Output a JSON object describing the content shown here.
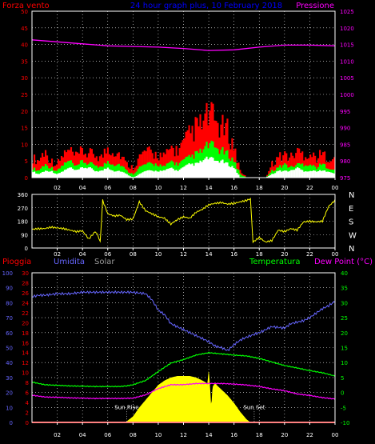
{
  "colors": {
    "wind_gust": "#ff0000",
    "wind_avg": "#00ff00",
    "wind_min": "#ffffff",
    "pressure": "#ff00ff",
    "direction": "#ffff00",
    "rain": "#ff0000",
    "humidity": "#6666ff",
    "solar": "#ffff00",
    "temperature": "#00ff00",
    "dew_point": "#ff00ff",
    "grid": "#ffffff",
    "frame": "#ffffff",
    "title": "#0000ff"
  },
  "chart_data": [
    {
      "type": "area",
      "id": "wind-pressure",
      "title": "24 hour graph plus, 10 February 2018",
      "left_label": "Forza vento",
      "right_label": "Pressione",
      "x_ticks": [
        "02",
        "04",
        "06",
        "08",
        "10",
        "12",
        "14",
        "16",
        "18",
        "20",
        "22",
        "00"
      ],
      "left_ticks": [
        "0",
        "5",
        "10",
        "15",
        "20",
        "25",
        "30",
        "35",
        "40",
        "45",
        "50"
      ],
      "right_ticks": [
        "975",
        "980",
        "985",
        "990",
        "995",
        "1000",
        "1005",
        "1010",
        "1015",
        "1020",
        "1025"
      ],
      "ylim_left": [
        0,
        50
      ],
      "ylim_right": [
        975,
        1025
      ],
      "grid": true,
      "series": [
        {
          "key": "gust",
          "color_key": "wind_gust",
          "x": [
            0,
            0.5,
            1,
            1.5,
            2,
            2.5,
            3,
            3.5,
            4,
            4.5,
            5,
            5.5,
            6,
            6.5,
            7,
            7.5,
            8,
            8.5,
            9,
            9.5,
            10,
            10.5,
            11,
            11.5,
            12,
            12.5,
            13,
            13.5,
            14,
            14.5,
            15,
            15.5,
            16,
            16.5,
            17,
            17.5,
            18,
            18.5,
            19,
            19.5,
            20,
            20.5,
            21,
            21.5,
            22,
            22.5,
            23,
            23.5,
            24
          ],
          "values": [
            6,
            5,
            8,
            5,
            4,
            7,
            8,
            6,
            8,
            7,
            7,
            6,
            9,
            8,
            7,
            4,
            3,
            6,
            8,
            7,
            7,
            6,
            9,
            8,
            10,
            13,
            15,
            16,
            19,
            17,
            15,
            14,
            9,
            2,
            0,
            0,
            0,
            0,
            4,
            6,
            7,
            6,
            8,
            7,
            7,
            6,
            7,
            6,
            5
          ]
        },
        {
          "key": "avg",
          "color_key": "wind_avg",
          "x": [
            0,
            0.5,
            1,
            1.5,
            2,
            2.5,
            3,
            3.5,
            4,
            4.5,
            5,
            5.5,
            6,
            6.5,
            7,
            7.5,
            8,
            8.5,
            9,
            9.5,
            10,
            10.5,
            11,
            11.5,
            12,
            12.5,
            13,
            13.5,
            14,
            14.5,
            15,
            15.5,
            16,
            16.5,
            17,
            17.5,
            18,
            18.5,
            19,
            19.5,
            20,
            20.5,
            21,
            21.5,
            22,
            22.5,
            23,
            23.5,
            24
          ],
          "values": [
            3,
            2,
            4,
            3,
            2,
            4,
            5,
            3,
            5,
            4,
            4,
            3,
            5,
            4,
            4,
            2,
            1,
            3,
            4,
            4,
            4,
            3,
            5,
            4,
            5,
            6,
            7,
            8,
            10,
            9,
            8,
            7,
            5,
            1,
            0,
            0,
            0,
            0,
            2,
            3,
            4,
            3,
            4,
            4,
            4,
            3,
            4,
            3,
            2
          ]
        },
        {
          "key": "min",
          "color_key": "wind_min",
          "x": [
            0,
            0.5,
            1,
            1.5,
            2,
            2.5,
            3,
            3.5,
            4,
            4.5,
            5,
            5.5,
            6,
            6.5,
            7,
            7.5,
            8,
            8.5,
            9,
            9.5,
            10,
            10.5,
            11,
            11.5,
            12,
            12.5,
            13,
            13.5,
            14,
            14.5,
            15,
            15.5,
            16,
            16.5,
            17,
            17.5,
            18,
            18.5,
            19,
            19.5,
            20,
            20.5,
            21,
            21.5,
            22,
            22.5,
            23,
            23.5,
            24
          ],
          "values": [
            2,
            1,
            2,
            2,
            1,
            2,
            3,
            2,
            3,
            3,
            2,
            2,
            3,
            2,
            2,
            1,
            0,
            1,
            2,
            2,
            2,
            2,
            3,
            2,
            3,
            4,
            4,
            5,
            6,
            5,
            5,
            4,
            3,
            0,
            0,
            0,
            0,
            0,
            1,
            2,
            2,
            2,
            3,
            2,
            2,
            2,
            2,
            2,
            1
          ]
        },
        {
          "key": "pressure",
          "axis": "right",
          "color_key": "pressure",
          "x": [
            0,
            2,
            4,
            6,
            8,
            10,
            12,
            14,
            16,
            18,
            20,
            22,
            24
          ],
          "values": [
            1016.4,
            1015.8,
            1015.2,
            1014.6,
            1014.4,
            1014.2,
            1013.8,
            1013.2,
            1013.4,
            1014.2,
            1014.8,
            1014.8,
            1014.6
          ]
        }
      ]
    },
    {
      "type": "line",
      "id": "wind-direction",
      "left_ticks": [
        "0",
        "90",
        "180",
        "270",
        "360"
      ],
      "ylim": [
        0,
        360
      ],
      "compass": [
        "N",
        "W",
        "S",
        "E",
        "N"
      ],
      "x_ticks": [
        "02",
        "04",
        "06",
        "08",
        "10",
        "12",
        "14",
        "16",
        "18",
        "20",
        "22",
        "00"
      ],
      "grid": true,
      "series": [
        {
          "key": "direction",
          "color_key": "direction",
          "x": [
            0,
            0.5,
            1,
            1.5,
            2,
            2.5,
            3,
            3.5,
            4,
            4.5,
            5,
            5.2,
            5.4,
            5.6,
            6,
            6.5,
            7,
            7.5,
            8,
            8.5,
            9,
            9.5,
            10,
            10.5,
            11,
            11.5,
            12,
            12.5,
            13,
            13.5,
            14,
            14.5,
            15,
            15.5,
            16,
            16.5,
            17,
            17.3,
            17.5,
            18,
            18.5,
            19,
            19.5,
            20,
            20.5,
            21,
            21.5,
            22,
            22.5,
            23,
            23.5,
            24
          ],
          "values": [
            125,
            130,
            130,
            140,
            135,
            130,
            120,
            110,
            115,
            60,
            110,
            90,
            40,
            320,
            230,
            215,
            220,
            190,
            195,
            310,
            250,
            230,
            210,
            200,
            160,
            190,
            210,
            200,
            240,
            260,
            290,
            300,
            305,
            295,
            300,
            310,
            320,
            330,
            40,
            70,
            40,
            50,
            120,
            110,
            130,
            120,
            175,
            180,
            175,
            180,
            280,
            320
          ]
        }
      ]
    },
    {
      "type": "line",
      "id": "rain-humidity-solar-temperature",
      "labels": {
        "rain": "Pioggia",
        "humidity": "Umidita",
        "solar": "Solar",
        "temperature": "Temperatura",
        "dew_point": "Dew Point (°C)"
      },
      "humidity_ticks": [
        "0",
        "10",
        "20",
        "30",
        "40",
        "50",
        "60",
        "70",
        "80",
        "90",
        "100"
      ],
      "rain_ticks": [
        "0",
        "2",
        "4",
        "6",
        "8",
        "10",
        "12",
        "14",
        "16",
        "18",
        "20",
        "22",
        "24",
        "26",
        "28",
        "30"
      ],
      "temp_ticks": [
        "-10",
        "-5",
        "0",
        "5",
        "10",
        "15",
        "20",
        "25",
        "30",
        "35",
        "40"
      ],
      "ylim_humidity": [
        0,
        100
      ],
      "ylim_temperature": [
        -10,
        40
      ],
      "x_ticks": [
        "02",
        "04",
        "06",
        "08",
        "10",
        "12",
        "14",
        "16",
        "18",
        "20",
        "22",
        "00"
      ],
      "annotations": [
        {
          "text": "Sun Rise",
          "x": 7.5
        },
        {
          "text": "Sun Set",
          "x": 17.6
        }
      ],
      "grid": true,
      "series": [
        {
          "key": "humidity",
          "axis": "humidity",
          "color_key": "humidity",
          "x": [
            0,
            0.5,
            1,
            2,
            3,
            4,
            5,
            6,
            7,
            8,
            9,
            9.5,
            10,
            10.5,
            11,
            12,
            13,
            14,
            14.5,
            15,
            15.5,
            16,
            16.5,
            17,
            18,
            19,
            20,
            20.5,
            21,
            21.5,
            22,
            22.5,
            23,
            23.5,
            24
          ],
          "values": [
            84,
            85,
            85,
            86,
            86,
            87,
            87,
            87,
            87,
            87,
            86,
            82,
            75,
            72,
            66,
            62,
            58,
            54,
            51,
            50,
            48,
            52,
            55,
            57,
            60,
            64,
            63,
            66,
            67,
            68,
            70,
            73,
            76,
            78,
            81
          ]
        },
        {
          "key": "temperature",
          "axis": "temperature",
          "color_key": "temperature",
          "x": [
            0,
            1,
            2,
            3,
            4,
            5,
            6,
            7,
            7.5,
            8,
            9,
            10,
            11,
            12,
            13,
            14,
            15,
            16,
            17,
            18,
            19,
            20,
            21,
            22,
            23,
            24
          ],
          "values": [
            3.5,
            2.6,
            2.4,
            2.2,
            2.1,
            2.0,
            2.0,
            2.0,
            2.2,
            2.6,
            4.0,
            7.0,
            9.8,
            11.0,
            12.5,
            13.3,
            12.9,
            12.5,
            12.2,
            11.4,
            10.2,
            9.0,
            8.2,
            7.3,
            6.6,
            5.5
          ]
        },
        {
          "key": "dew_point",
          "axis": "temperature",
          "color_key": "dew_point",
          "x": [
            0,
            1,
            2,
            3,
            4,
            5,
            6,
            7,
            8,
            9,
            10,
            11,
            12,
            13,
            14,
            15,
            16,
            17,
            18,
            19,
            20,
            21,
            22,
            23,
            24
          ],
          "values": [
            -0.9,
            -1.5,
            -1.6,
            -1.8,
            -1.9,
            -2.0,
            -2.0,
            -2.0,
            -1.9,
            -0.8,
            1.3,
            2.6,
            2.6,
            3.0,
            3.0,
            3.0,
            2.8,
            2.5,
            2.0,
            1.2,
            0.6,
            -0.5,
            -1.0,
            -1.7,
            -2.2
          ]
        },
        {
          "key": "solar",
          "axis": "humidity",
          "color_key": "solar",
          "x": [
            7.4,
            8,
            8.5,
            9,
            9.5,
            10,
            10.5,
            11,
            11.5,
            12,
            12.5,
            13,
            13.5,
            13.9,
            14,
            14.1,
            14.2,
            14.3,
            14.5,
            15,
            15.5,
            16,
            16.5,
            17,
            17.3
          ],
          "values": [
            0,
            4,
            10,
            15,
            20,
            25,
            28,
            30,
            31,
            31,
            31,
            30,
            28,
            26,
            36,
            24,
            10,
            24,
            26,
            22,
            18,
            13,
            7,
            2,
            0
          ]
        },
        {
          "key": "rain",
          "axis": "rain",
          "color_key": "rain",
          "x": [
            0,
            24
          ],
          "values": [
            0,
            0
          ]
        }
      ]
    }
  ]
}
